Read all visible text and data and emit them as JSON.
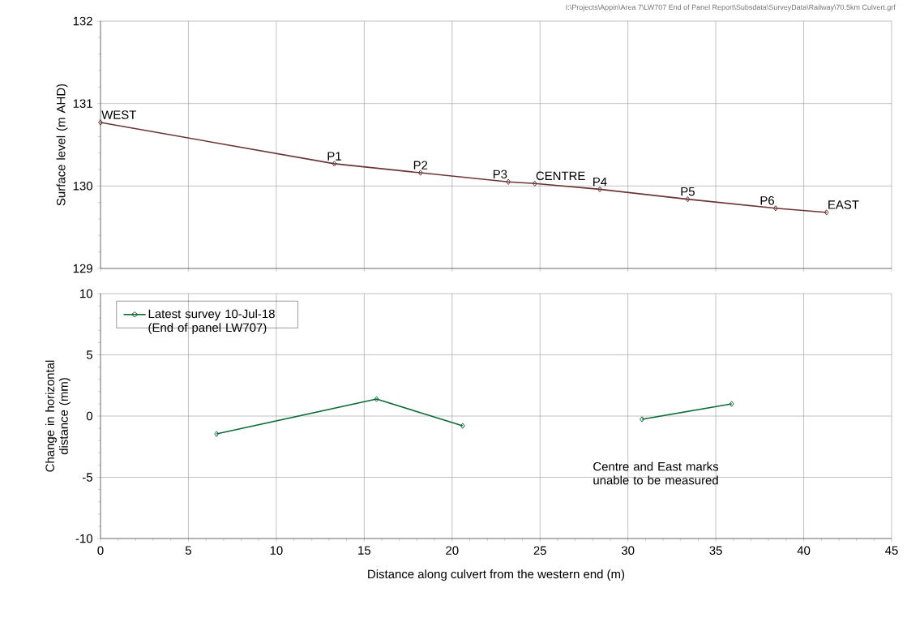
{
  "chart_data": [
    {
      "type": "line",
      "ylabel": "Surface level (m AHD)",
      "x": [
        0,
        13.3,
        18.2,
        23.2,
        24.7,
        28.4,
        33.4,
        38.4,
        41.3
      ],
      "series": [
        {
          "color": "#6b3434",
          "values": [
            130.77,
            130.27,
            130.16,
            130.05,
            130.03,
            129.96,
            129.84,
            129.73,
            129.68
          ]
        }
      ],
      "xlim": [
        0,
        45
      ],
      "xticks": [
        0,
        5,
        10,
        15,
        20,
        25,
        30,
        35,
        40,
        45
      ],
      "ylim": [
        129,
        132
      ],
      "yticks": [
        129,
        130,
        131,
        132
      ],
      "grid": true,
      "marker": "diamond",
      "line_style": "solid",
      "tick_labels": "y",
      "annotations": [
        {
          "text": "WEST",
          "x": 0,
          "y": 130.77
        },
        {
          "text": "P1",
          "x": 13.3,
          "y": 130.27
        },
        {
          "text": "P2",
          "x": 18.2,
          "y": 130.16
        },
        {
          "text": "P3",
          "x": 23.2,
          "y": 130.05
        },
        {
          "text": "CENTRE",
          "x": 24.7,
          "y": 130.03
        },
        {
          "text": "P4",
          "x": 28.4,
          "y": 129.96
        },
        {
          "text": "P5",
          "x": 33.4,
          "y": 129.84
        },
        {
          "text": "P6",
          "x": 38.4,
          "y": 129.73
        },
        {
          "text": "EAST",
          "x": 41.3,
          "y": 129.68
        },
        "I:\\Projects\\Appin\\Area 7\\LW707 End of Panel Report\\Subsdata\\SurveyData\\Railway\\70.5km Culvert.grf"
      ]
    },
    {
      "type": "line",
      "xlabel": "Distance along culvert from the western end (m)",
      "ylabel": "Change in horizontal distance (mm)",
      "x": [
        6.6,
        15.7,
        20.6,
        24.7,
        30.8,
        35.9
      ],
      "series": [
        {
          "name": "Latest survey 10-Jul-18 (End of panel LW707)",
          "color": "#0b6b35",
          "values": [
            -1.46,
            1.39,
            -0.8,
            null,
            -0.26,
            0.99
          ]
        }
      ],
      "xlim": [
        0,
        45
      ],
      "xticks": [
        0,
        5,
        10,
        15,
        20,
        25,
        30,
        35,
        40,
        45
      ],
      "ylim": [
        -10,
        10
      ],
      "yticks": [
        -10,
        -5,
        0,
        5,
        10
      ],
      "grid": true,
      "marker": "diamond",
      "line_style": "solid",
      "legend": "top left",
      "annotations": [
        "Centre and East marks unable to be measured"
      ]
    }
  ]
}
